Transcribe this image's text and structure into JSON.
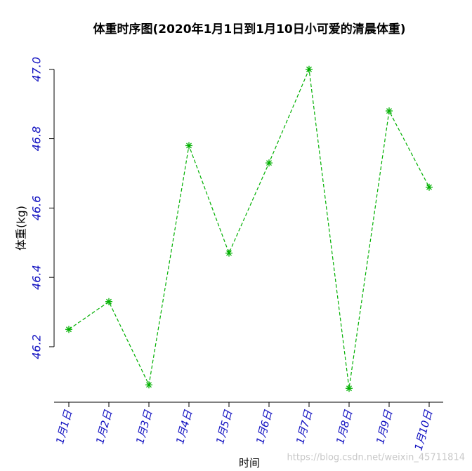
{
  "chart_data": {
    "type": "line",
    "title": "体重时序图(2020年1月1日到1月10日小可爱的清晨体重)",
    "x_label": "时间",
    "y_label": "体重(kg)",
    "categories": [
      "1月1日",
      "1月2日",
      "1月3日",
      "1月4日",
      "1月5日",
      "1月6日",
      "1月7日",
      "1月8日",
      "1月9日",
      "1月10日"
    ],
    "series": [
      {
        "name": "体重",
        "color": "#00b000",
        "values": [
          46.25,
          46.33,
          46.09,
          46.78,
          46.47,
          46.73,
          47.0,
          46.08,
          46.88,
          46.66
        ]
      }
    ],
    "ylim": [
      46.04,
      47.04
    ],
    "yticks": [
      46.2,
      46.4,
      46.6,
      46.8,
      {
        "value": 47,
        "label": "47.0"
      }
    ],
    "grid": false,
    "watermark": "https://blog.csdn.net/weixin_45711814"
  }
}
